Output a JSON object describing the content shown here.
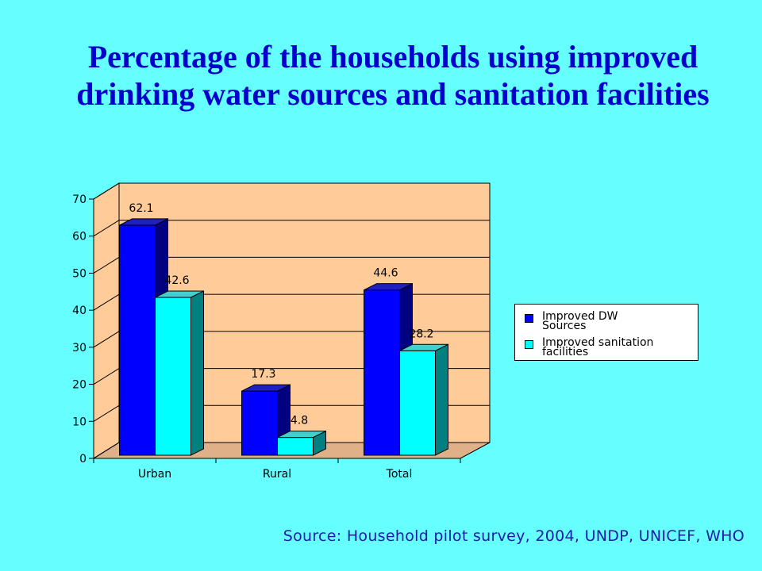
{
  "slide": {
    "title_line1": "Percentage of the households using improved",
    "title_line2": "drinking water sources and sanitation facilities",
    "source": "Source: Household pilot survey, 2004, UNDP, UNICEF, WHO"
  },
  "colors": {
    "background": "#66ffff",
    "plot_area": "#ffcc99",
    "series1": "#0000ff",
    "series2": "#00ffff",
    "title": "#0000cc"
  },
  "chart_data": {
    "type": "bar",
    "style": "3d-clustered-column",
    "categories": [
      "Urban",
      "Rural",
      "Total"
    ],
    "series": [
      {
        "name": "Improved DW Sources",
        "values": [
          62.1,
          17.3,
          44.6
        ]
      },
      {
        "name": "Improved sanitation facilities",
        "values": [
          42.6,
          4.8,
          28.2
        ]
      }
    ],
    "data_labels": [
      [
        "62.1",
        "17.3",
        "44.6"
      ],
      [
        "42.6",
        "4.8",
        "28.2"
      ]
    ],
    "y_ticks": [
      0,
      10,
      20,
      30,
      40,
      50,
      60,
      70
    ],
    "ylim": [
      0,
      70
    ],
    "grid": true,
    "legend_position": "right",
    "legend": {
      "series1_line1": "Improved DW",
      "series1_line2": "Sources",
      "series2_line1": "Improved sanitation",
      "series2_line2": "facilities"
    }
  }
}
